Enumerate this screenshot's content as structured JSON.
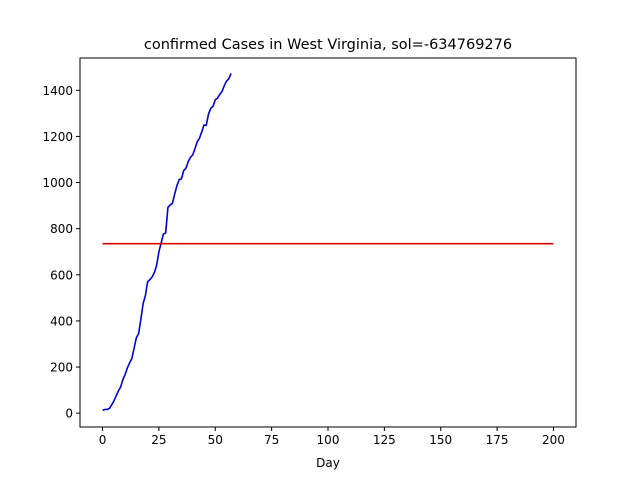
{
  "chart_data": {
    "type": "line",
    "title": "confirmed Cases in West Virginia, sol=-634769276",
    "xlabel": "Day",
    "ylabel": "",
    "xlim": [
      -10,
      210
    ],
    "ylim": [
      -60,
      1540
    ],
    "x_ticks": [
      0,
      25,
      50,
      75,
      100,
      125,
      150,
      175,
      200
    ],
    "y_ticks": [
      0,
      200,
      400,
      600,
      800,
      1000,
      1200,
      1400
    ],
    "grid": false,
    "legend": "none",
    "series": [
      {
        "color": "#0000cc",
        "x": [
          0,
          1,
          2,
          3,
          4,
          5,
          6,
          7,
          8,
          9,
          10,
          11,
          12,
          13,
          14,
          15,
          16,
          17,
          18,
          19,
          20,
          21,
          22,
          23,
          24,
          25,
          26,
          27,
          28,
          29,
          30,
          31,
          32,
          33,
          34,
          35,
          36,
          37,
          38,
          39,
          40,
          41,
          42,
          43,
          44,
          45,
          46,
          47,
          48,
          49,
          50,
          51,
          52,
          53,
          54,
          55,
          56,
          57
        ],
        "y": [
          12,
          16,
          16,
          20,
          35,
          52,
          74,
          96,
          113,
          145,
          167,
          196,
          218,
          237,
          282,
          327,
          345,
          408,
          475,
          510,
          570,
          579,
          591,
          610,
          642,
          700,
          738,
          777,
          781,
          892,
          903,
          910,
          950,
          987,
          1013,
          1016,
          1052,
          1062,
          1091,
          1109,
          1120,
          1147,
          1177,
          1192,
          1220,
          1249,
          1248,
          1297,
          1322,
          1330,
          1359,
          1366,
          1382,
          1395,
          1420,
          1440,
          1450,
          1473
        ]
      },
      {
        "color": "#dd0000",
        "x": [
          0,
          200
        ],
        "y": [
          735,
          735
        ]
      }
    ]
  }
}
